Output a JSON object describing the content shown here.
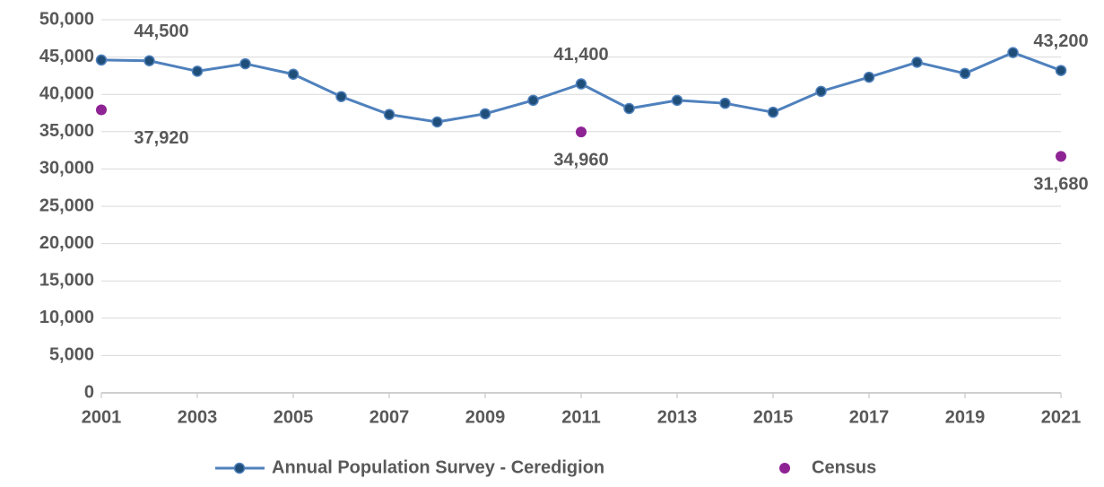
{
  "chart_data": {
    "type": "line",
    "xlim": [
      2001,
      2021
    ],
    "xticks": [
      2001,
      2003,
      2005,
      2007,
      2009,
      2011,
      2013,
      2015,
      2017,
      2019,
      2021
    ],
    "ylim": [
      0,
      50000
    ],
    "yticks": [
      {
        "value": 0,
        "label": "0"
      },
      {
        "value": 5000,
        "label": "5,000"
      },
      {
        "value": 10000,
        "label": "10,000"
      },
      {
        "value": 15000,
        "label": "15,000"
      },
      {
        "value": 20000,
        "label": "20,000"
      },
      {
        "value": 25000,
        "label": "25,000"
      },
      {
        "value": 30000,
        "label": "30,000"
      },
      {
        "value": 35000,
        "label": "35,000"
      },
      {
        "value": 40000,
        "label": "40,000"
      },
      {
        "value": 45000,
        "label": "45,000"
      },
      {
        "value": 50000,
        "label": "50,000"
      }
    ],
    "grid": true,
    "legend": "bottom",
    "series": [
      {
        "name": "Annual Population Survey - Ceredigion",
        "type": "line",
        "color": "#4f81bd",
        "marker_color": "#1f4e79",
        "x": [
          2001,
          2002,
          2003,
          2004,
          2005,
          2006,
          2007,
          2008,
          2009,
          2010,
          2011,
          2012,
          2013,
          2014,
          2015,
          2016,
          2017,
          2018,
          2019,
          2020,
          2021
        ],
        "values": [
          44600,
          44500,
          43100,
          44100,
          42700,
          39700,
          37300,
          36300,
          37400,
          39200,
          41400,
          38100,
          39200,
          38800,
          37600,
          40400,
          42300,
          44300,
          42800,
          45600,
          43200
        ],
        "value_labels": [
          null,
          "44,500",
          null,
          null,
          null,
          null,
          null,
          null,
          null,
          null,
          "41,400",
          null,
          null,
          null,
          null,
          null,
          null,
          null,
          null,
          null,
          "43,200"
        ]
      },
      {
        "name": "Census",
        "type": "scatter",
        "color": "#8e2394",
        "x": [
          2001,
          2011,
          2021
        ],
        "values": [
          37920,
          34960,
          31680
        ],
        "value_labels": [
          "37,920",
          "34,960",
          "31,680"
        ]
      }
    ]
  }
}
